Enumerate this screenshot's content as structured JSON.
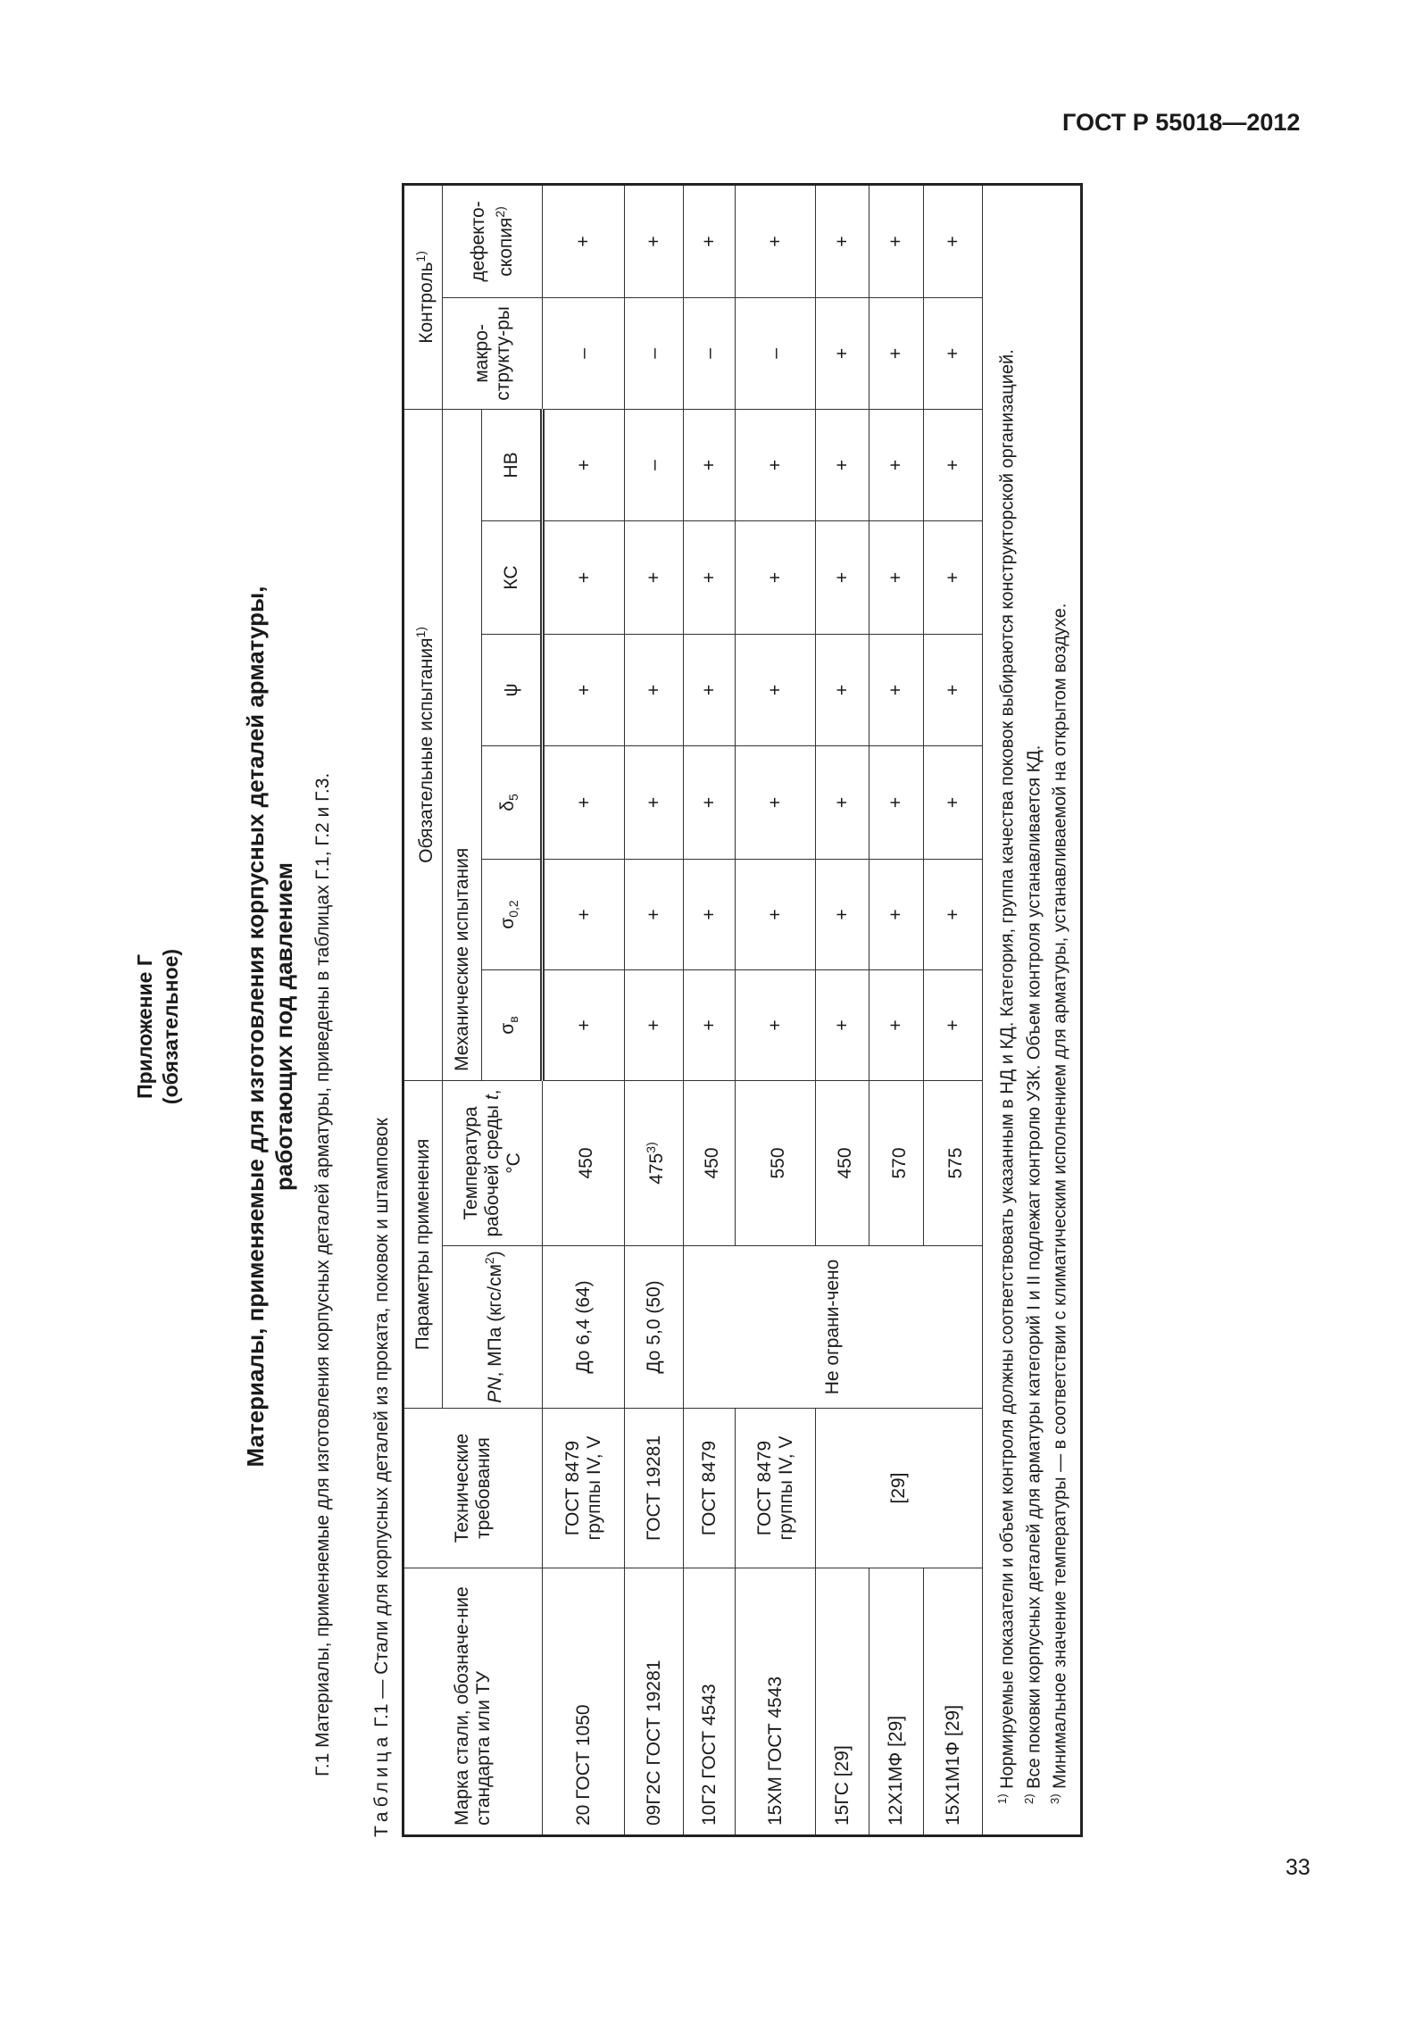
{
  "header": {
    "doc_id": "ГОСТ Р 55018—2012"
  },
  "page_number": "33",
  "appendix": {
    "line1": "Приложение Г",
    "line2": "(обязательное)"
  },
  "title": {
    "line1": "Материалы, применяемые для изготовления корпусных деталей арматуры,",
    "line2": "работающих под давлением"
  },
  "paragraph": "Г.1 Материалы, применяемые для изготовления корпусных деталей арматуры, приведены в таблицах Г.1, Г.2 и Г.3.",
  "table_caption": {
    "prefix": "Таблица",
    "text": "Г.1 — Стали для корпусных деталей из проката, поковок и штамповок"
  },
  "table": {
    "headers": {
      "steel": "Марка стали, обозначе-ние стандарта или ТУ",
      "tech": "Технические требования",
      "params": "Параметры применения",
      "pn_a": "PN",
      "pn_b": ", МПа (кгс/см",
      "pn_c": "2",
      "pn_d": ")",
      "temp_a": "Температура рабочей среды ",
      "temp_b": "t",
      "temp_c": ", °С",
      "mandatory": "Обязательные испытания",
      "mandatory_sup": "1)",
      "mech": "Механические испытания",
      "sigma_b": "σ",
      "sigma_b_sub": "в",
      "sigma_02": "σ",
      "sigma_02_sub": "0,2",
      "delta5": "δ",
      "delta5_sub": "5",
      "psi": "ψ",
      "kc": "КС",
      "hb": "НВ",
      "control": "Контроль",
      "control_sup": "1)",
      "macro": "макро-структу-ры",
      "defect": "дефекто-скопия",
      "defect_sup": "2)"
    },
    "rows": [
      {
        "steel": "20 ГОСТ 1050",
        "tech": "ГОСТ 8479 группы IV, V",
        "pn": "До 6,4 (64)",
        "temp": "450",
        "temp_sup": "",
        "vals": [
          "+",
          "+",
          "+",
          "+",
          "+",
          "+",
          "–",
          "+"
        ]
      },
      {
        "steel": "09Г2С ГОСТ 19281",
        "tech": "ГОСТ 19281",
        "pn": "До 5,0 (50)",
        "temp": "475",
        "temp_sup": "3)",
        "vals": [
          "+",
          "+",
          "+",
          "+",
          "+",
          "–",
          "–",
          "+"
        ]
      },
      {
        "steel": "10Г2 ГОСТ 4543",
        "tech": "ГОСТ 8479",
        "pn": "Не ограни-чено",
        "temp": "450",
        "temp_sup": "",
        "vals": [
          "+",
          "+",
          "+",
          "+",
          "+",
          "+",
          "–",
          "+"
        ]
      },
      {
        "steel": "15ХМ ГОСТ 4543",
        "tech": "ГОСТ 8479 группы IV, V",
        "temp": "550",
        "temp_sup": "",
        "vals": [
          "+",
          "+",
          "+",
          "+",
          "+",
          "+",
          "–",
          "+"
        ]
      },
      {
        "steel": "15ГС  [29]",
        "tech": "[29]",
        "temp": "450",
        "temp_sup": "",
        "vals": [
          "+",
          "+",
          "+",
          "+",
          "+",
          "+",
          "+",
          "+"
        ]
      },
      {
        "steel": "12Х1МФ [29]",
        "temp": "570",
        "temp_sup": "",
        "vals": [
          "+",
          "+",
          "+",
          "+",
          "+",
          "+",
          "+",
          "+"
        ]
      },
      {
        "steel": "15Х1М1Ф [29]",
        "temp": "575",
        "temp_sup": "",
        "vals": [
          "+",
          "+",
          "+",
          "+",
          "+",
          "+",
          "+",
          "+"
        ]
      }
    ],
    "footnotes": [
      {
        "mark": "1)",
        "text": " Нормируемые показатели и объем контроля должны соответствовать указанным в НД и КД. Категория, группа качества поковок выбираются конструкторской организацией."
      },
      {
        "mark": "2)",
        "text": " Все поковки корпусных деталей для арматуры категорий I и II подлежат контролю УЗК. Объем контроля устанавливается КД."
      },
      {
        "mark": "3)",
        "text": " Минимальное значение температуры — в соответствии с климатическим исполнением для арматуры, устанавливаемой на открытом воздухе."
      }
    ]
  }
}
